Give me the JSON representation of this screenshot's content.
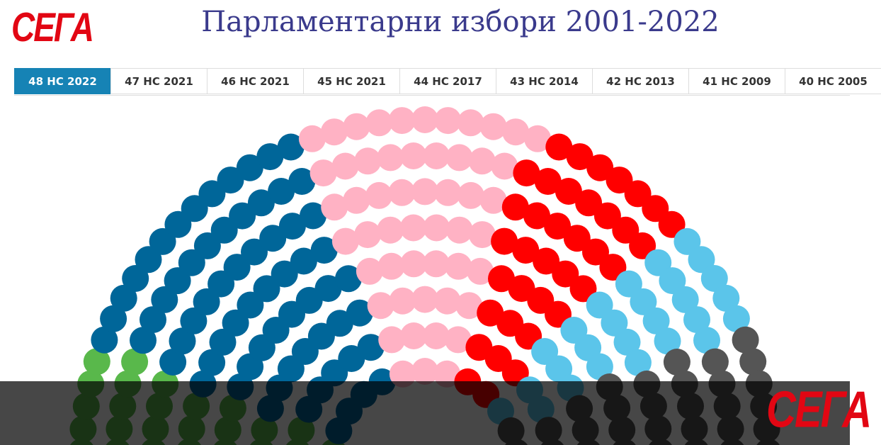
{
  "logo": {
    "text": "СЕГА"
  },
  "title": "Парламентарни избори 2001-2022",
  "tabs": [
    {
      "label": "48 НС 2022",
      "active": true
    },
    {
      "label": "47 НС 2021",
      "active": false
    },
    {
      "label": "46 НС 2021",
      "active": false
    },
    {
      "label": "45 НС 2021",
      "active": false
    },
    {
      "label": "44 НС 2017",
      "active": false
    },
    {
      "label": "43 НС 2014",
      "active": false
    },
    {
      "label": "42 НС 2013",
      "active": false
    },
    {
      "label": "41 НС 2009",
      "active": false
    },
    {
      "label": "40 НС 2005",
      "active": false
    }
  ],
  "chart_data": {
    "type": "parliament",
    "total_seats": 240,
    "series": [
      {
        "seats": 25,
        "color": "#59b84b"
      },
      {
        "seats": 67,
        "color": "#006699"
      },
      {
        "seats": 53,
        "color": "#ffb2c4"
      },
      {
        "seats": 37,
        "color": "#ff0000"
      },
      {
        "seats": 27,
        "color": "#5bc5ea"
      },
      {
        "seats": 31,
        "color": "#555555"
      }
    ]
  }
}
